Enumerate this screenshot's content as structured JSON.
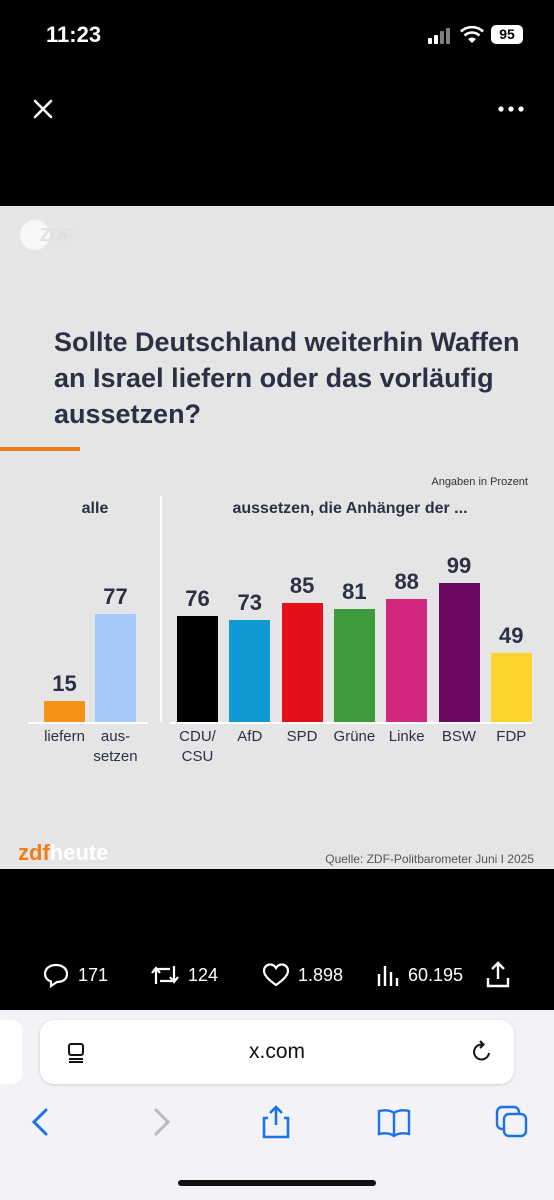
{
  "status": {
    "time": "11:23",
    "battery": "95"
  },
  "card": {
    "logo_top": "ZDF",
    "headline": "Sollte Deutschland weiterhin Waffen an Israel liefern oder das vorläufig aussetzen?",
    "units": "Angaben in Prozent",
    "left_heading": "alle",
    "right_heading": "aussetzen, die Anhänger der ...",
    "source": "Quelle: ZDF-Politbarometer Juni I 2025",
    "brand_a": "zdf",
    "brand_b": "heute"
  },
  "chart_data": [
    {
      "type": "bar",
      "title": "alle",
      "categories": [
        "liefern",
        "aus-\nsetzen"
      ],
      "values": [
        15,
        77
      ],
      "colors": [
        "#f39216",
        "#a4c8f7"
      ]
    },
    {
      "type": "bar",
      "title": "aussetzen, die Anhänger der ...",
      "categories": [
        "CDU/\nCSU",
        "AfD",
        "SPD",
        "Grüne",
        "Linke",
        "BSW",
        "FDP"
      ],
      "values": [
        76,
        73,
        85,
        81,
        88,
        99,
        49
      ],
      "colors": [
        "#000000",
        "#0e9ad2",
        "#e3101b",
        "#3d9b3b",
        "#d2277f",
        "#6b0a60",
        "#fdd32c"
      ]
    }
  ],
  "engagement": {
    "replies": "171",
    "reposts": "124",
    "likes": "1.898",
    "views": "60.195"
  },
  "browser": {
    "url": "x.com"
  }
}
